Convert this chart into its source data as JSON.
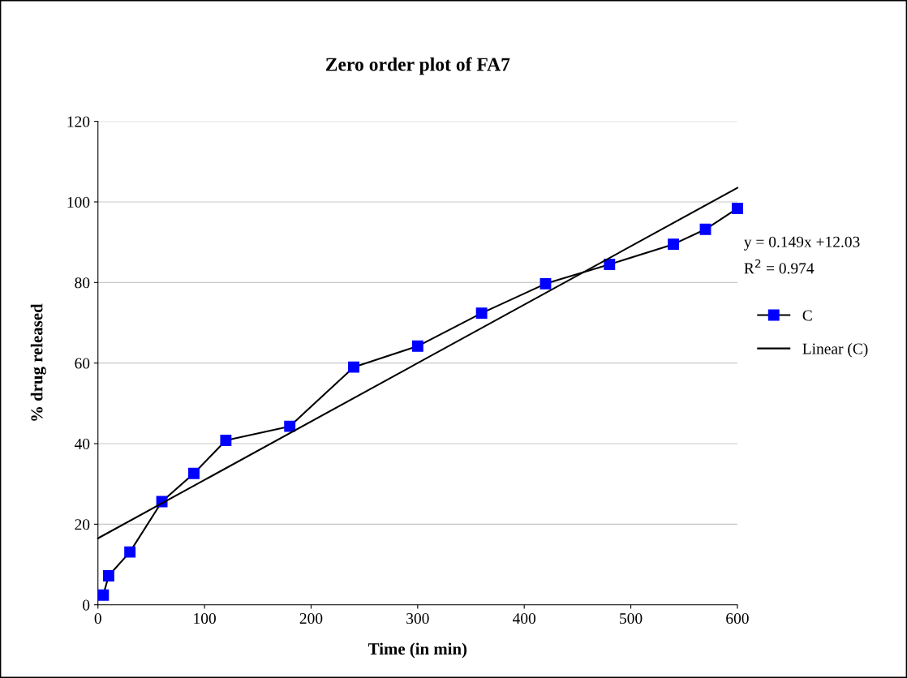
{
  "chart_data": {
    "type": "line",
    "title": "Zero order plot of FA7",
    "xlabel": "Time (in min)",
    "ylabel": "% drug released",
    "x": [
      5,
      10,
      30,
      60,
      90,
      120,
      180,
      240,
      300,
      360,
      420,
      480,
      540,
      570,
      600
    ],
    "series": [
      {
        "name": "C",
        "color": "#0000ff",
        "values": [
          2.4,
          7.2,
          13.1,
          25.6,
          32.6,
          40.8,
          44.3,
          59.0,
          64.2,
          72.4,
          79.7,
          84.5,
          89.5,
          93.2,
          98.4
        ],
        "marker": "square"
      },
      {
        "name": "Linear (C)",
        "type": "line",
        "color": "#000000",
        "x": [
          0,
          600
        ],
        "values": [
          16.5,
          103.5
        ],
        "marker": "none"
      }
    ],
    "annotations": [
      "y = 0.149x +12.03",
      "R$^{2}$ = 0.974"
    ],
    "xlim": [
      0,
      600
    ],
    "xticks": [
      0,
      100,
      200,
      300,
      400,
      500,
      600
    ],
    "ylim": [
      0,
      120
    ],
    "yticks": [
      0,
      20,
      40,
      60,
      80,
      100,
      120
    ],
    "grid": "y",
    "legend": "right",
    "line_style": "solid"
  }
}
